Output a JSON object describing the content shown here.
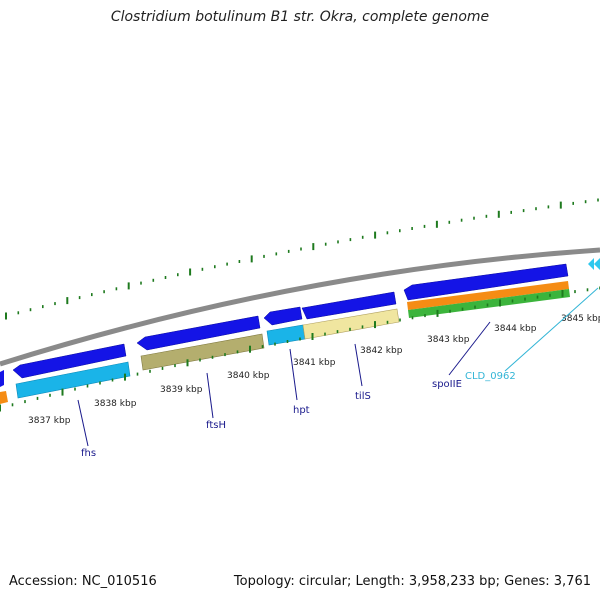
{
  "title": "Clostridium botulinum B1 str. Okra, complete genome",
  "footer": {
    "accession": "Accession: NC_010516",
    "summary": "Topology: circular; Length: 3,958,233 bp; Genes: 3,761"
  },
  "colors": {
    "backbone": "#8a8a8a",
    "forward_gene": "#1414e6",
    "cds_cyan": "#1ab4e8",
    "cds_olive": "#b4ae6e",
    "cds_yellow": "#f0e6a0",
    "rrna_orange": "#f58c14",
    "trna_green": "#3cb43c",
    "tick_green": "#1e7a1e",
    "label_text": "#1a1a8c",
    "label_cyan": "#33b5d6"
  },
  "ticks": [
    "3837 kbp",
    "3838 kbp",
    "3839 kbp",
    "3840 kbp",
    "3841 kbp",
    "3842 kbp",
    "3843 kbp",
    "3844 kbp",
    "3845 kbp"
  ],
  "genes": [
    {
      "name": "fhs",
      "color": "label_text"
    },
    {
      "name": "ftsH",
      "color": "label_text"
    },
    {
      "name": "hpt",
      "color": "label_text"
    },
    {
      "name": "tilS",
      "color": "label_text"
    },
    {
      "name": "spoIIE",
      "color": "label_text"
    },
    {
      "name": "CLD_0962",
      "color": "label_cyan"
    }
  ]
}
